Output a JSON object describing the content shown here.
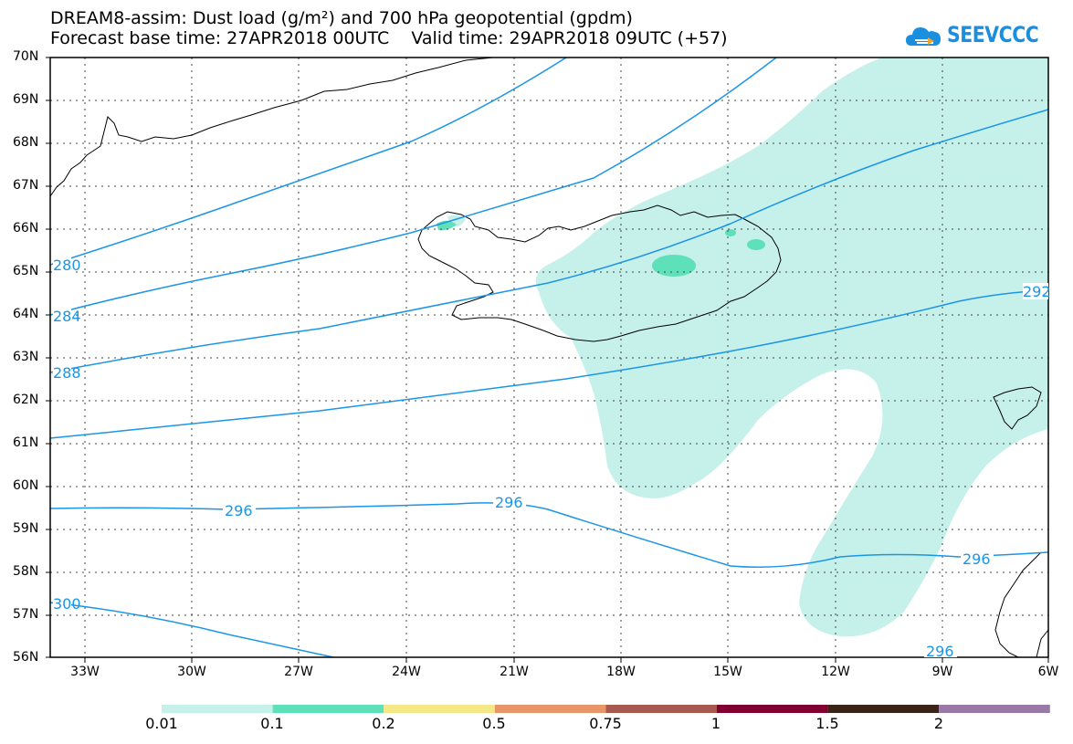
{
  "title_line1": "DREAM8-assim: Dust load (g/m²) and 700 hPa geopotential (gpdm)",
  "title_line2": "Forecast base time: 27APR2018 00UTC    Valid time: 29APR2018 09UTC (+57)",
  "logo_text": "SEEVCCC",
  "lat_labels": [
    "70N",
    "69N",
    "68N",
    "67N",
    "66N",
    "65N",
    "64N",
    "63N",
    "62N",
    "61N",
    "60N",
    "59N",
    "58N",
    "57N",
    "56N"
  ],
  "lon_labels": [
    "33W",
    "30W",
    "27W",
    "24W",
    "21W",
    "18W",
    "15W",
    "12W",
    "9W",
    "6W"
  ],
  "contour_labels": [
    "280",
    "284",
    "288",
    "292",
    "296",
    "296",
    "296",
    "296",
    "300"
  ],
  "colorbar": {
    "labels": [
      "0.01",
      "0.1",
      "0.2",
      "0.5",
      "0.75",
      "1",
      "1.5",
      "2"
    ],
    "colors": [
      "#c6f0ea",
      "#5ee0b8",
      "#f5e887",
      "#e8956a",
      "#a85a50",
      "#800030",
      "#3a2418",
      "#9a78a8"
    ]
  },
  "colors": {
    "contour": "#1a95e8",
    "dust_light": "#c6f0ea",
    "dust_mid": "#5ee0b8",
    "coast": "#000000"
  }
}
